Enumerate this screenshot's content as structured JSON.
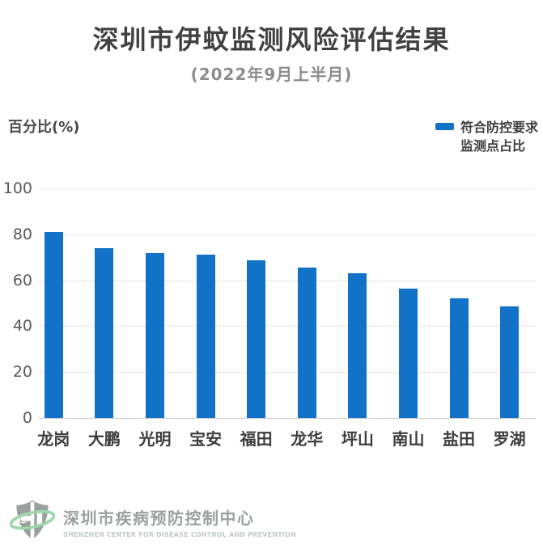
{
  "header": {
    "title": "深圳市伊蚊监测风险评估结果",
    "subtitle": "(2022年9月上半月)"
  },
  "chart_data": {
    "type": "bar",
    "title": "深圳市伊蚊监测风险评估结果",
    "subtitle": "(2022年9月上半月)",
    "ylabel": "百分比(%)",
    "xlabel": "",
    "categories": [
      "龙岗",
      "大鹏",
      "光明",
      "宝安",
      "福田",
      "龙华",
      "坪山",
      "南山",
      "盐田",
      "罗湖"
    ],
    "series": [
      {
        "name": "符合防控要求监测点占比",
        "values": [
          81,
          74,
          72,
          71,
          68.5,
          65.5,
          63,
          56.5,
          52,
          48.5
        ]
      }
    ],
    "ylim": [
      0,
      100
    ],
    "yticks": [
      100,
      80,
      60,
      40,
      20,
      0
    ],
    "grid": true,
    "legend": {
      "position": "top-right",
      "lines": [
        "符合防控要求",
        "监测点占比"
      ]
    }
  },
  "colors": {
    "bar": "#1272c8",
    "gridline": "#e4e4e4",
    "axis_line": "#c9c9c9",
    "title_text": "#414141",
    "subtitle_text": "#8d8d8d",
    "tick_text": "#595959",
    "logo_gray": "#9aa09e",
    "logo_green": "#9dd6aa"
  },
  "footer": {
    "org_cn": "深圳市疾病预防控制中心",
    "org_en": "SHENZHEN CENTER FOR DISEASE CONTROL AND PREVENTION"
  }
}
